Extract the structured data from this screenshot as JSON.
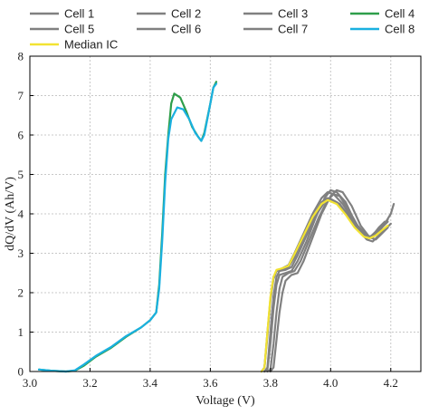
{
  "chart_data": {
    "type": "line",
    "title": "",
    "xlabel": "Voltage (V)",
    "ylabel": "dQ/dV (Ah/V)",
    "xlim": [
      3.0,
      4.3
    ],
    "ylim": [
      0,
      8
    ],
    "xticks": [
      3.0,
      3.2,
      3.4,
      3.6,
      3.8,
      4.0,
      4.2
    ],
    "xtick_labels": [
      "3.0",
      "3.2",
      "3.4",
      "3.6",
      "3.8",
      "4.0",
      "4.2"
    ],
    "yticks": [
      0,
      1,
      2,
      3,
      4,
      5,
      6,
      7,
      8
    ],
    "ytick_labels": [
      "0",
      "1",
      "2",
      "3",
      "4",
      "5",
      "6",
      "7",
      "8"
    ],
    "grid": true,
    "legend_position": "top",
    "series": [
      {
        "name": "Cell 1",
        "color": "#808080",
        "points": [
          [
            3.78,
            0
          ],
          [
            3.79,
            0.05
          ],
          [
            3.8,
            0.7
          ],
          [
            3.81,
            1.6
          ],
          [
            3.82,
            2.2
          ],
          [
            3.83,
            2.45
          ],
          [
            3.85,
            2.5
          ],
          [
            3.87,
            2.55
          ],
          [
            3.89,
            2.8
          ],
          [
            3.92,
            3.3
          ],
          [
            3.95,
            3.9
          ],
          [
            3.98,
            4.4
          ],
          [
            4.0,
            4.6
          ],
          [
            4.02,
            4.55
          ],
          [
            4.05,
            4.3
          ],
          [
            4.08,
            3.8
          ],
          [
            4.11,
            3.45
          ],
          [
            4.13,
            3.4
          ],
          [
            4.15,
            3.55
          ],
          [
            4.17,
            3.7
          ],
          [
            4.19,
            3.85
          ]
        ]
      },
      {
        "name": "Cell 2",
        "color": "#808080",
        "points": [
          [
            3.77,
            0
          ],
          [
            3.78,
            0.1
          ],
          [
            3.79,
            0.9
          ],
          [
            3.8,
            1.8
          ],
          [
            3.81,
            2.35
          ],
          [
            3.82,
            2.55
          ],
          [
            3.84,
            2.6
          ],
          [
            3.86,
            2.65
          ],
          [
            3.88,
            2.9
          ],
          [
            3.91,
            3.4
          ],
          [
            3.94,
            3.9
          ],
          [
            3.97,
            4.3
          ],
          [
            3.99,
            4.4
          ],
          [
            4.02,
            4.3
          ],
          [
            4.05,
            4.05
          ],
          [
            4.08,
            3.7
          ],
          [
            4.11,
            3.45
          ],
          [
            4.13,
            3.4
          ],
          [
            4.15,
            3.5
          ],
          [
            4.17,
            3.65
          ],
          [
            4.19,
            3.8
          ]
        ]
      },
      {
        "name": "Cell 3",
        "color": "#808080",
        "points": [
          [
            3.8,
            0
          ],
          [
            3.81,
            0.1
          ],
          [
            3.82,
            0.8
          ],
          [
            3.83,
            1.5
          ],
          [
            3.84,
            2.0
          ],
          [
            3.85,
            2.3
          ],
          [
            3.87,
            2.45
          ],
          [
            3.89,
            2.5
          ],
          [
            3.91,
            2.8
          ],
          [
            3.94,
            3.4
          ],
          [
            3.97,
            4.0
          ],
          [
            4.0,
            4.45
          ],
          [
            4.02,
            4.6
          ],
          [
            4.04,
            4.55
          ],
          [
            4.07,
            4.2
          ],
          [
            4.1,
            3.7
          ],
          [
            4.13,
            3.4
          ],
          [
            4.15,
            3.35
          ],
          [
            4.17,
            3.5
          ],
          [
            4.19,
            3.65
          ]
        ]
      },
      {
        "name": "Cell 4",
        "color": "#2e9e4a",
        "points": [
          [
            3.03,
            0.05
          ],
          [
            3.07,
            0.02
          ],
          [
            3.12,
            0
          ],
          [
            3.15,
            0.02
          ],
          [
            3.18,
            0.15
          ],
          [
            3.22,
            0.38
          ],
          [
            3.27,
            0.6
          ],
          [
            3.32,
            0.88
          ],
          [
            3.37,
            1.12
          ],
          [
            3.4,
            1.3
          ],
          [
            3.42,
            1.5
          ],
          [
            3.43,
            2.2
          ],
          [
            3.44,
            3.5
          ],
          [
            3.45,
            5.0
          ],
          [
            3.46,
            6.0
          ],
          [
            3.47,
            6.8
          ],
          [
            3.48,
            7.05
          ],
          [
            3.5,
            6.95
          ],
          [
            3.52,
            6.6
          ],
          [
            3.54,
            6.2
          ],
          [
            3.56,
            5.95
          ],
          [
            3.57,
            5.85
          ],
          [
            3.58,
            6.05
          ],
          [
            3.6,
            6.8
          ],
          [
            3.61,
            7.2
          ],
          [
            3.62,
            7.35
          ]
        ]
      },
      {
        "name": "Cell 5",
        "color": "#808080",
        "points": [
          [
            3.78,
            0
          ],
          [
            3.79,
            0.1
          ],
          [
            3.8,
            1.0
          ],
          [
            3.81,
            1.9
          ],
          [
            3.82,
            2.4
          ],
          [
            3.83,
            2.55
          ],
          [
            3.85,
            2.58
          ],
          [
            3.87,
            2.65
          ],
          [
            3.89,
            2.95
          ],
          [
            3.92,
            3.45
          ],
          [
            3.95,
            3.95
          ],
          [
            3.98,
            4.3
          ],
          [
            4.0,
            4.38
          ],
          [
            4.03,
            4.25
          ],
          [
            4.06,
            3.95
          ],
          [
            4.09,
            3.6
          ],
          [
            4.12,
            3.35
          ],
          [
            4.14,
            3.3
          ],
          [
            4.16,
            3.45
          ],
          [
            4.18,
            3.6
          ],
          [
            4.2,
            3.75
          ]
        ]
      },
      {
        "name": "Cell 6",
        "color": "#808080",
        "points": [
          [
            3.77,
            0
          ],
          [
            3.78,
            0.1
          ],
          [
            3.79,
            1.0
          ],
          [
            3.8,
            1.85
          ],
          [
            3.81,
            2.4
          ],
          [
            3.82,
            2.55
          ],
          [
            3.84,
            2.62
          ],
          [
            3.86,
            2.7
          ],
          [
            3.88,
            3.0
          ],
          [
            3.91,
            3.5
          ],
          [
            3.94,
            4.0
          ],
          [
            3.97,
            4.4
          ],
          [
            3.99,
            4.55
          ],
          [
            4.01,
            4.5
          ],
          [
            4.04,
            4.25
          ],
          [
            4.07,
            3.9
          ],
          [
            4.1,
            3.55
          ],
          [
            4.12,
            3.4
          ],
          [
            4.14,
            3.45
          ],
          [
            4.16,
            3.65
          ],
          [
            4.18,
            3.8
          ]
        ]
      },
      {
        "name": "Cell 7",
        "color": "#808080",
        "points": [
          [
            3.79,
            0
          ],
          [
            3.8,
            0.05
          ],
          [
            3.81,
            0.7
          ],
          [
            3.82,
            1.5
          ],
          [
            3.83,
            2.1
          ],
          [
            3.84,
            2.4
          ],
          [
            3.86,
            2.5
          ],
          [
            3.88,
            2.55
          ],
          [
            3.9,
            2.8
          ],
          [
            3.93,
            3.35
          ],
          [
            3.96,
            3.9
          ],
          [
            3.99,
            4.35
          ],
          [
            4.01,
            4.5
          ],
          [
            4.03,
            4.45
          ],
          [
            4.06,
            4.1
          ],
          [
            4.09,
            3.7
          ],
          [
            4.12,
            3.45
          ],
          [
            4.14,
            3.4
          ],
          [
            4.16,
            3.55
          ],
          [
            4.18,
            3.75
          ],
          [
            4.2,
            4.0
          ],
          [
            4.21,
            4.25
          ]
        ]
      },
      {
        "name": "Cell 8",
        "color": "#1ab0e0",
        "points": [
          [
            3.03,
            0.05
          ],
          [
            3.07,
            0.02
          ],
          [
            3.12,
            0
          ],
          [
            3.15,
            0.03
          ],
          [
            3.18,
            0.18
          ],
          [
            3.22,
            0.4
          ],
          [
            3.27,
            0.62
          ],
          [
            3.32,
            0.9
          ],
          [
            3.37,
            1.12
          ],
          [
            3.4,
            1.3
          ],
          [
            3.42,
            1.5
          ],
          [
            3.43,
            2.1
          ],
          [
            3.44,
            3.3
          ],
          [
            3.45,
            4.8
          ],
          [
            3.46,
            5.9
          ],
          [
            3.47,
            6.4
          ],
          [
            3.49,
            6.7
          ],
          [
            3.51,
            6.65
          ],
          [
            3.53,
            6.4
          ],
          [
            3.55,
            6.05
          ],
          [
            3.57,
            5.85
          ],
          [
            3.58,
            6.0
          ],
          [
            3.6,
            6.8
          ],
          [
            3.61,
            7.2
          ],
          [
            3.62,
            7.3
          ]
        ]
      },
      {
        "name": "Median IC",
        "color": "#f2e332",
        "points": [
          [
            3.77,
            0
          ],
          [
            3.78,
            0.1
          ],
          [
            3.79,
            1.0
          ],
          [
            3.8,
            1.9
          ],
          [
            3.81,
            2.4
          ],
          [
            3.82,
            2.58
          ],
          [
            3.84,
            2.62
          ],
          [
            3.86,
            2.68
          ],
          [
            3.88,
            2.98
          ],
          [
            3.91,
            3.45
          ],
          [
            3.94,
            3.92
          ],
          [
            3.97,
            4.25
          ],
          [
            3.99,
            4.35
          ],
          [
            4.02,
            4.25
          ],
          [
            4.05,
            3.98
          ],
          [
            4.08,
            3.65
          ],
          [
            4.11,
            3.42
          ],
          [
            4.13,
            3.38
          ],
          [
            4.15,
            3.45
          ],
          [
            4.17,
            3.58
          ],
          [
            4.19,
            3.7
          ]
        ]
      }
    ]
  }
}
